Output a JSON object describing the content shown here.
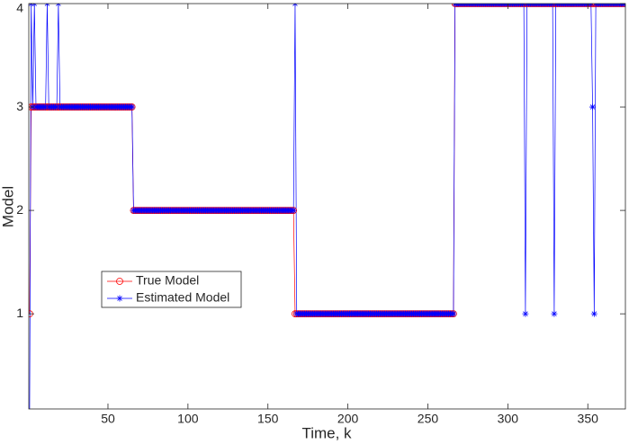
{
  "chart_data": {
    "type": "line",
    "x_label": "Time, k",
    "y_label": "Model",
    "xlim": [
      0.5,
      373.5
    ],
    "ylim": [
      0.08,
      4
    ],
    "xticks": [
      50,
      100,
      150,
      200,
      250,
      300,
      350
    ],
    "yticks": [
      1,
      2,
      3,
      4
    ],
    "grid": false,
    "legend": "center-left",
    "x": [
      1,
      2,
      3,
      4,
      5,
      6,
      7,
      8,
      9,
      10,
      11,
      12,
      13,
      14,
      15,
      16,
      17,
      18,
      19,
      20,
      21,
      22,
      23,
      24,
      25,
      26,
      27,
      28,
      29,
      30,
      31,
      32,
      33,
      34,
      35,
      36,
      37,
      38,
      39,
      40,
      41,
      42,
      43,
      44,
      45,
      46,
      47,
      48,
      49,
      50,
      51,
      52,
      53,
      54,
      55,
      56,
      57,
      58,
      59,
      60,
      61,
      62,
      63,
      64,
      65,
      66,
      67,
      68,
      69,
      70,
      71,
      72,
      73,
      74,
      75,
      76,
      77,
      78,
      79,
      80,
      81,
      82,
      83,
      84,
      85,
      86,
      87,
      88,
      89,
      90,
      91,
      92,
      93,
      94,
      95,
      96,
      97,
      98,
      99,
      100,
      101,
      102,
      103,
      104,
      105,
      106,
      107,
      108,
      109,
      110,
      111,
      112,
      113,
      114,
      115,
      116,
      117,
      118,
      119,
      120,
      121,
      122,
      123,
      124,
      125,
      126,
      127,
      128,
      129,
      130,
      131,
      132,
      133,
      134,
      135,
      136,
      137,
      138,
      139,
      140,
      141,
      142,
      143,
      144,
      145,
      146,
      147,
      148,
      149,
      150,
      151,
      152,
      153,
      154,
      155,
      156,
      157,
      158,
      159,
      160,
      161,
      162,
      163,
      164,
      165,
      166,
      167,
      168,
      169,
      170,
      171,
      172,
      173,
      174,
      175,
      176,
      177,
      178,
      179,
      180,
      181,
      182,
      183,
      184,
      185,
      186,
      187,
      188,
      189,
      190,
      191,
      192,
      193,
      194,
      195,
      196,
      197,
      198,
      199,
      200,
      201,
      202,
      203,
      204,
      205,
      206,
      207,
      208,
      209,
      210,
      211,
      212,
      213,
      214,
      215,
      216,
      217,
      218,
      219,
      220,
      221,
      222,
      223,
      224,
      225,
      226,
      227,
      228,
      229,
      230,
      231,
      232,
      233,
      234,
      235,
      236,
      237,
      238,
      239,
      240,
      241,
      242,
      243,
      244,
      245,
      246,
      247,
      248,
      249,
      250,
      251,
      252,
      253,
      254,
      255,
      256,
      257,
      258,
      259,
      260,
      261,
      262,
      263,
      264,
      265,
      266,
      267,
      268,
      269,
      270,
      271,
      272,
      273,
      274,
      275,
      276,
      277,
      278,
      279,
      280,
      281,
      282,
      283,
      284,
      285,
      286,
      287,
      288,
      289,
      290,
      291,
      292,
      293,
      294,
      295,
      296,
      297,
      298,
      299,
      300,
      301,
      302,
      303,
      304,
      305,
      306,
      307,
      308,
      309,
      310,
      311,
      312,
      313,
      314,
      315,
      316,
      317,
      318,
      319,
      320,
      321,
      322,
      323,
      324,
      325,
      326,
      327,
      328,
      329,
      330,
      331,
      332,
      333,
      334,
      335,
      336,
      337,
      338,
      339,
      340,
      341,
      342,
      343,
      344,
      345,
      346,
      347,
      348,
      349,
      350,
      351,
      352,
      353,
      354,
      355,
      356,
      357,
      358,
      359,
      360,
      361,
      362,
      363,
      364,
      365,
      366,
      367,
      368,
      369,
      370,
      371,
      372,
      373
    ],
    "series": [
      {
        "name": "True Model",
        "color": "#ff0000",
        "marker": "circle",
        "values": [
          1,
          3,
          3,
          3,
          3,
          3,
          3,
          3,
          3,
          3,
          3,
          3,
          3,
          3,
          3,
          3,
          3,
          3,
          3,
          3,
          3,
          3,
          3,
          3,
          3,
          3,
          3,
          3,
          3,
          3,
          3,
          3,
          3,
          3,
          3,
          3,
          3,
          3,
          3,
          3,
          3,
          3,
          3,
          3,
          3,
          3,
          3,
          3,
          3,
          3,
          3,
          3,
          3,
          3,
          3,
          3,
          3,
          3,
          3,
          3,
          3,
          3,
          3,
          3,
          3,
          2,
          2,
          2,
          2,
          2,
          2,
          2,
          2,
          2,
          2,
          2,
          2,
          2,
          2,
          2,
          2,
          2,
          2,
          2,
          2,
          2,
          2,
          2,
          2,
          2,
          2,
          2,
          2,
          2,
          2,
          2,
          2,
          2,
          2,
          2,
          2,
          2,
          2,
          2,
          2,
          2,
          2,
          2,
          2,
          2,
          2,
          2,
          2,
          2,
          2,
          2,
          2,
          2,
          2,
          2,
          2,
          2,
          2,
          2,
          2,
          2,
          2,
          2,
          2,
          2,
          2,
          2,
          2,
          2,
          2,
          2,
          2,
          2,
          2,
          2,
          2,
          2,
          2,
          2,
          2,
          2,
          2,
          2,
          2,
          2,
          2,
          2,
          2,
          2,
          2,
          2,
          2,
          2,
          2,
          2,
          2,
          2,
          2,
          2,
          2,
          2,
          1,
          1,
          1,
          1,
          1,
          1,
          1,
          1,
          1,
          1,
          1,
          1,
          1,
          1,
          1,
          1,
          1,
          1,
          1,
          1,
          1,
          1,
          1,
          1,
          1,
          1,
          1,
          1,
          1,
          1,
          1,
          1,
          1,
          1,
          1,
          1,
          1,
          1,
          1,
          1,
          1,
          1,
          1,
          1,
          1,
          1,
          1,
          1,
          1,
          1,
          1,
          1,
          1,
          1,
          1,
          1,
          1,
          1,
          1,
          1,
          1,
          1,
          1,
          1,
          1,
          1,
          1,
          1,
          1,
          1,
          1,
          1,
          1,
          1,
          1,
          1,
          1,
          1,
          1,
          1,
          1,
          1,
          1,
          1,
          1,
          1,
          1,
          1,
          1,
          1,
          1,
          1,
          1,
          1,
          1,
          1,
          1,
          1,
          1,
          1,
          4,
          4,
          4,
          4,
          4,
          4,
          4,
          4,
          4,
          4,
          4,
          4,
          4,
          4,
          4,
          4,
          4,
          4,
          4,
          4,
          4,
          4,
          4,
          4,
          4,
          4,
          4,
          4,
          4,
          4,
          4,
          4,
          4,
          4,
          4,
          4,
          4,
          4,
          4,
          4,
          4,
          4,
          4,
          4,
          4,
          4,
          4,
          4,
          4,
          4,
          4,
          4,
          4,
          4,
          4,
          4,
          4,
          4,
          4,
          4,
          4,
          4,
          4,
          4,
          4,
          4,
          4,
          4,
          4,
          4,
          4,
          4,
          4,
          4,
          4,
          4,
          4,
          4,
          4,
          4,
          4,
          4,
          4,
          4,
          4,
          4,
          4,
          4,
          4,
          4,
          4,
          4,
          4,
          4,
          4,
          4,
          4,
          4,
          4,
          4,
          4,
          4,
          4,
          4,
          4,
          4,
          4
        ]
      },
      {
        "name": "Estimated Model",
        "color": "#0000ff",
        "marker": "asterisk",
        "values": [
          0,
          4,
          3,
          4,
          3,
          3,
          3,
          3,
          3,
          3,
          3,
          4,
          3,
          3,
          3,
          3,
          3,
          3,
          4,
          3,
          3,
          3,
          3,
          3,
          3,
          3,
          3,
          3,
          3,
          3,
          3,
          3,
          3,
          3,
          3,
          3,
          3,
          3,
          3,
          3,
          3,
          3,
          3,
          3,
          3,
          3,
          3,
          3,
          3,
          3,
          3,
          3,
          3,
          3,
          3,
          3,
          3,
          3,
          3,
          3,
          3,
          3,
          3,
          3,
          3,
          2,
          2,
          2,
          2,
          2,
          2,
          2,
          2,
          2,
          2,
          2,
          2,
          2,
          2,
          2,
          2,
          2,
          2,
          2,
          2,
          2,
          2,
          2,
          2,
          2,
          2,
          2,
          2,
          2,
          2,
          2,
          2,
          2,
          2,
          2,
          2,
          2,
          2,
          2,
          2,
          2,
          2,
          2,
          2,
          2,
          2,
          2,
          2,
          2,
          2,
          2,
          2,
          2,
          2,
          2,
          2,
          2,
          2,
          2,
          2,
          2,
          2,
          2,
          2,
          2,
          2,
          2,
          2,
          2,
          2,
          2,
          2,
          2,
          2,
          2,
          2,
          2,
          2,
          2,
          2,
          2,
          2,
          2,
          2,
          2,
          2,
          2,
          2,
          2,
          2,
          2,
          2,
          2,
          2,
          2,
          2,
          2,
          2,
          2,
          2,
          2,
          4,
          1,
          1,
          1,
          1,
          1,
          1,
          1,
          1,
          1,
          1,
          1,
          1,
          1,
          1,
          1,
          1,
          1,
          1,
          1,
          1,
          1,
          1,
          1,
          1,
          1,
          1,
          1,
          1,
          1,
          1,
          1,
          1,
          1,
          1,
          1,
          1,
          1,
          1,
          1,
          1,
          1,
          1,
          1,
          1,
          1,
          1,
          1,
          1,
          1,
          1,
          1,
          1,
          1,
          1,
          1,
          1,
          1,
          1,
          1,
          1,
          1,
          1,
          1,
          1,
          1,
          1,
          1,
          1,
          1,
          1,
          1,
          1,
          1,
          1,
          1,
          1,
          1,
          1,
          1,
          1,
          1,
          1,
          1,
          1,
          1,
          1,
          1,
          1,
          1,
          1,
          1,
          1,
          1,
          1,
          1,
          1,
          1,
          1,
          1,
          4,
          4,
          4,
          4,
          4,
          4,
          4,
          4,
          4,
          4,
          4,
          4,
          4,
          4,
          4,
          4,
          4,
          4,
          4,
          4,
          4,
          4,
          4,
          4,
          4,
          4,
          4,
          4,
          4,
          4,
          4,
          4,
          4,
          4,
          4,
          4,
          4,
          4,
          4,
          4,
          4,
          4,
          4,
          4,
          1,
          4,
          4,
          4,
          4,
          4,
          4,
          4,
          4,
          4,
          4,
          4,
          4,
          4,
          4,
          4,
          4,
          4,
          1,
          4,
          4,
          4,
          4,
          4,
          4,
          4,
          4,
          4,
          4,
          4,
          4,
          4,
          4,
          4,
          4,
          4,
          4,
          4,
          4,
          4,
          4,
          4,
          3,
          1,
          4,
          4,
          4,
          4,
          4,
          4,
          4,
          4,
          4,
          4,
          4,
          4,
          4,
          4,
          4,
          4,
          4,
          4,
          4
        ]
      }
    ]
  }
}
